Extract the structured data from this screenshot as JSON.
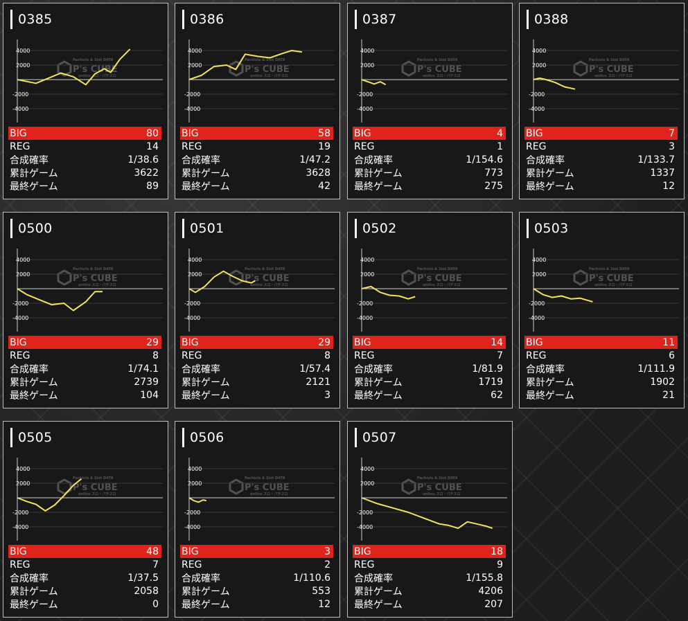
{
  "labels": {
    "big": "BIG",
    "reg": "REG",
    "prob": "合成確率",
    "total": "累計ゲーム",
    "last": "最終ゲーム"
  },
  "watermark": {
    "top": "Pachislo & Slot DATA",
    "brand": "P's CUBE",
    "sub": "unitcu スロ・パチスロ"
  },
  "colors": {
    "line": "#f5e35a",
    "big_row": "#e0241c",
    "card_bg": "#181818"
  },
  "chart_ticks": [
    "4000",
    "2000",
    "-2000",
    "-4000"
  ],
  "cards": [
    {
      "title": "0385",
      "big": "80",
      "reg": "14",
      "prob": "1/38.6",
      "total": "3622",
      "last": "89",
      "chart_data": {
        "type": "line",
        "ylim": [
          -5000,
          5000
        ],
        "x": [
          0,
          600,
          1000,
          1400,
          1800,
          2200,
          2500,
          2800,
          3000,
          3300,
          3622
        ],
        "values": [
          0,
          -500,
          200,
          900,
          400,
          -700,
          800,
          1500,
          1000,
          2800,
          4200
        ]
      }
    },
    {
      "title": "0386",
      "big": "58",
      "reg": "19",
      "prob": "1/47.2",
      "total": "3628",
      "last": "42",
      "chart_data": {
        "type": "line",
        "ylim": [
          -5000,
          5000
        ],
        "x": [
          0,
          400,
          800,
          1200,
          1500,
          1800,
          2200,
          2600,
          3000,
          3300,
          3628
        ],
        "values": [
          0,
          600,
          1800,
          2000,
          1400,
          3500,
          3200,
          3000,
          3600,
          4000,
          3800
        ]
      }
    },
    {
      "title": "0387",
      "big": "4",
      "reg": "1",
      "prob": "1/154.6",
      "total": "773",
      "last": "275",
      "chart_data": {
        "type": "line",
        "ylim": [
          -5000,
          5000
        ],
        "x": [
          0,
          200,
          400,
          600,
          773
        ],
        "values": [
          0,
          -300,
          -600,
          -300,
          -700
        ]
      }
    },
    {
      "title": "0388",
      "big": "7",
      "reg": "3",
      "prob": "1/133.7",
      "total": "1337",
      "last": "12",
      "chart_data": {
        "type": "line",
        "ylim": [
          -5000,
          5000
        ],
        "x": [
          0,
          200,
          400,
          700,
          1000,
          1337
        ],
        "values": [
          0,
          200,
          0,
          -400,
          -1000,
          -1300
        ]
      }
    },
    {
      "title": "0500",
      "big": "29",
      "reg": "8",
      "prob": "1/74.1",
      "total": "2739",
      "last": "104",
      "chart_data": {
        "type": "line",
        "ylim": [
          -5000,
          5000
        ],
        "x": [
          0,
          300,
          700,
          1100,
          1500,
          1800,
          2200,
          2500,
          2739
        ],
        "values": [
          0,
          -800,
          -1500,
          -2200,
          -2000,
          -3000,
          -1800,
          -400,
          -400
        ]
      }
    },
    {
      "title": "0501",
      "big": "29",
      "reg": "8",
      "prob": "1/57.4",
      "total": "2121",
      "last": "3",
      "chart_data": {
        "type": "line",
        "ylim": [
          -5000,
          5000
        ],
        "x": [
          0,
          200,
          500,
          800,
          1100,
          1400,
          1700,
          2000,
          2121
        ],
        "values": [
          0,
          -500,
          300,
          1600,
          2400,
          1700,
          1100,
          800,
          1100
        ]
      }
    },
    {
      "title": "0502",
      "big": "14",
      "reg": "7",
      "prob": "1/81.9",
      "total": "1719",
      "last": "62",
      "chart_data": {
        "type": "line",
        "ylim": [
          -5000,
          5000
        ],
        "x": [
          0,
          300,
          600,
          900,
          1200,
          1500,
          1719
        ],
        "values": [
          0,
          300,
          -500,
          -900,
          -1000,
          -1400,
          -1100
        ]
      }
    },
    {
      "title": "0503",
      "big": "11",
      "reg": "6",
      "prob": "1/111.9",
      "total": "1902",
      "last": "21",
      "chart_data": {
        "type": "line",
        "ylim": [
          -5000,
          5000
        ],
        "x": [
          0,
          300,
          600,
          900,
          1200,
          1500,
          1902
        ],
        "values": [
          0,
          -800,
          -1200,
          -1000,
          -1400,
          -1300,
          -1800
        ]
      }
    },
    {
      "title": "0505",
      "big": "48",
      "reg": "7",
      "prob": "1/37.5",
      "total": "2058",
      "last": "0",
      "chart_data": {
        "type": "line",
        "ylim": [
          -5000,
          5000
        ],
        "x": [
          0,
          300,
          600,
          900,
          1200,
          1500,
          1800,
          2058
        ],
        "values": [
          0,
          -500,
          -900,
          -1800,
          -1000,
          300,
          1700,
          2600
        ]
      }
    },
    {
      "title": "0506",
      "big": "3",
      "reg": "2",
      "prob": "1/110.6",
      "total": "553",
      "last": "12",
      "chart_data": {
        "type": "line",
        "ylim": [
          -5000,
          5000
        ],
        "x": [
          0,
          150,
          300,
          450,
          553
        ],
        "values": [
          0,
          -400,
          -600,
          -300,
          -400
        ]
      }
    },
    {
      "title": "0507",
      "big": "18",
      "reg": "9",
      "prob": "1/155.8",
      "total": "4206",
      "last": "207",
      "chart_data": {
        "type": "line",
        "ylim": [
          -5000,
          5000
        ],
        "x": [
          0,
          500,
          1000,
          1500,
          2000,
          2500,
          2800,
          3100,
          3400,
          3700,
          4000,
          4206
        ],
        "values": [
          0,
          -800,
          -1400,
          -2000,
          -2800,
          -3600,
          -3800,
          -4200,
          -3300,
          -3600,
          -3900,
          -4200
        ]
      }
    }
  ]
}
